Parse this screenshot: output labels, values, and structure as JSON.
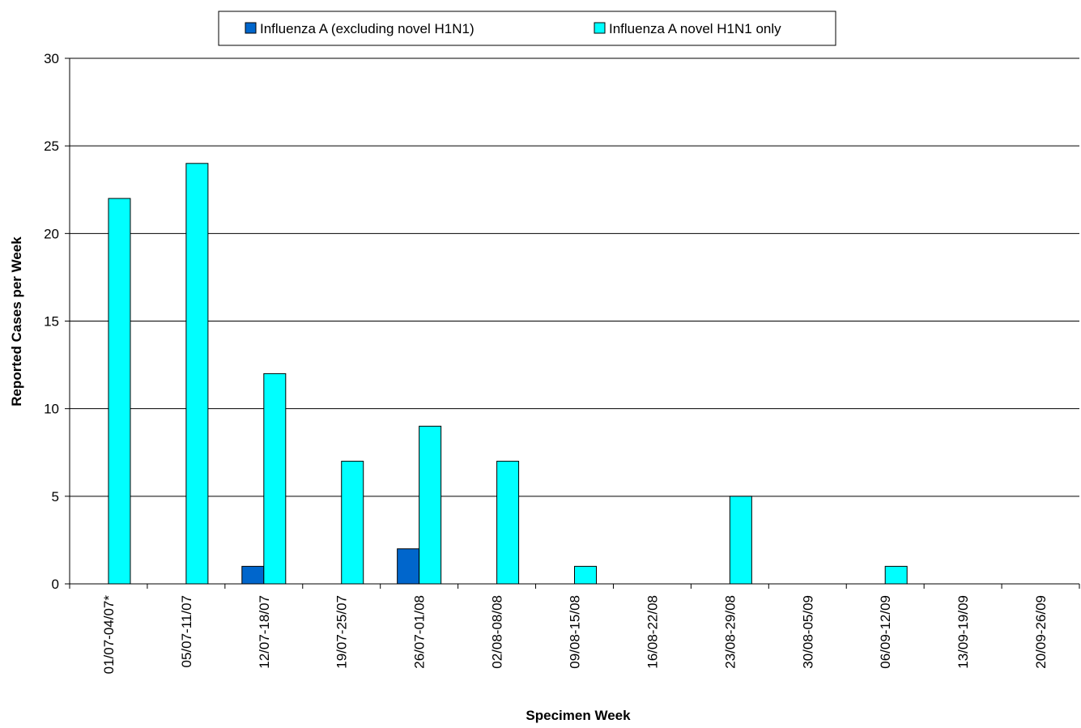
{
  "chart_data": {
    "type": "bar",
    "title": "",
    "xlabel": "Specimen Week",
    "ylabel": "Reported Cases per Week",
    "ylim": [
      0,
      30
    ],
    "yticks": [
      0,
      5,
      10,
      15,
      20,
      25,
      30
    ],
    "grid": true,
    "legend_position": "top-center",
    "categories": [
      "01/07-04/07*",
      "05/07-11/07",
      "12/07-18/07",
      "19/07-25/07",
      "26/07-01/08",
      "02/08-08/08",
      "09/08-15/08",
      "16/08-22/08",
      "23/08-29/08",
      "30/08-05/09",
      "06/09-12/09",
      "13/09-19/09",
      "20/09-26/09"
    ],
    "series": [
      {
        "name": "Influenza A (excluding novel H1N1)",
        "color": "#0066CC",
        "values": [
          0,
          0,
          1,
          0,
          2,
          0,
          0,
          0,
          0,
          0,
          0,
          0,
          0
        ]
      },
      {
        "name": "Influenza A novel H1N1 only",
        "color": "#00FFFF",
        "values": [
          22,
          24,
          12,
          7,
          9,
          7,
          1,
          0,
          5,
          0,
          1,
          0,
          0
        ]
      }
    ]
  }
}
